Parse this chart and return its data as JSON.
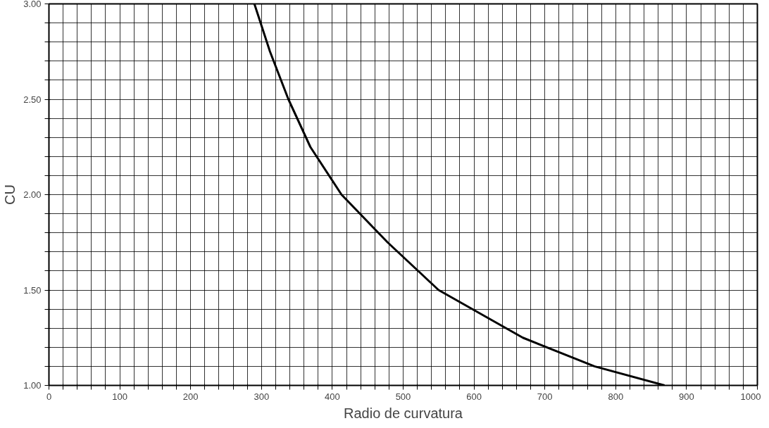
{
  "chart_data": {
    "type": "line",
    "xlabel": "Radio de curvatura",
    "ylabel": "CU",
    "x": [
      290,
      312,
      338,
      369,
      413,
      478,
      550,
      669,
      770,
      869
    ],
    "series": [
      {
        "color": "#000000",
        "values": [
          3.0,
          2.75,
          2.5,
          2.25,
          2.0,
          1.75,
          1.5,
          1.25,
          1.1,
          1.0
        ]
      }
    ],
    "xlim": [
      0,
      1000
    ],
    "ylim": [
      1.0,
      3.0
    ],
    "xticks": [
      0,
      {
        "value": 20,
        "label": null
      },
      {
        "value": 40,
        "label": null
      },
      {
        "value": 60,
        "label": null
      },
      {
        "value": 80,
        "label": null
      },
      100,
      {
        "value": 120,
        "label": null
      },
      {
        "value": 140,
        "label": null
      },
      {
        "value": 160,
        "label": null
      },
      {
        "value": 180,
        "label": null
      },
      200,
      {
        "value": 220,
        "label": null
      },
      {
        "value": 240,
        "label": null
      },
      {
        "value": 260,
        "label": null
      },
      {
        "value": 280,
        "label": null
      },
      300,
      {
        "value": 320,
        "label": null
      },
      {
        "value": 340,
        "label": null
      },
      {
        "value": 360,
        "label": null
      },
      {
        "value": 380,
        "label": null
      },
      400,
      {
        "value": 420,
        "label": null
      },
      {
        "value": 440,
        "label": null
      },
      {
        "value": 460,
        "label": null
      },
      {
        "value": 480,
        "label": null
      },
      500,
      {
        "value": 520,
        "label": null
      },
      {
        "value": 540,
        "label": null
      },
      {
        "value": 560,
        "label": null
      },
      {
        "value": 580,
        "label": null
      },
      600,
      {
        "value": 620,
        "label": null
      },
      {
        "value": 640,
        "label": null
      },
      {
        "value": 660,
        "label": null
      },
      {
        "value": 680,
        "label": null
      },
      700,
      {
        "value": 720,
        "label": null
      },
      {
        "value": 740,
        "label": null
      },
      {
        "value": 760,
        "label": null
      },
      {
        "value": 780,
        "label": null
      },
      800,
      {
        "value": 820,
        "label": null
      },
      {
        "value": 840,
        "label": null
      },
      {
        "value": 860,
        "label": null
      },
      {
        "value": 880,
        "label": null
      },
      900,
      {
        "value": 920,
        "label": null
      },
      {
        "value": 940,
        "label": null
      },
      {
        "value": 960,
        "label": null
      },
      {
        "value": 980,
        "label": null
      },
      1000
    ],
    "yticks": [
      {
        "value": 1.0,
        "label": "1.00"
      },
      {
        "value": 1.1,
        "label": null
      },
      {
        "value": 1.2,
        "label": null
      },
      {
        "value": 1.3,
        "label": null
      },
      {
        "value": 1.4,
        "label": null
      },
      {
        "value": 1.5,
        "label": "1.50"
      },
      {
        "value": 1.6,
        "label": null
      },
      {
        "value": 1.7,
        "label": null
      },
      {
        "value": 1.8,
        "label": null
      },
      {
        "value": 1.9,
        "label": null
      },
      {
        "value": 2.0,
        "label": "2.00"
      },
      {
        "value": 2.1,
        "label": null
      },
      {
        "value": 2.2,
        "label": null
      },
      {
        "value": 2.3,
        "label": null
      },
      {
        "value": 2.4,
        "label": null
      },
      {
        "value": 2.5,
        "label": "2.50"
      },
      {
        "value": 2.6,
        "label": null
      },
      {
        "value": 2.7,
        "label": null
      },
      {
        "value": 2.8,
        "label": null
      },
      {
        "value": 2.9,
        "label": null
      },
      {
        "value": 3.0,
        "label": "3.00"
      }
    ],
    "grid": true,
    "line_style": "solid"
  }
}
